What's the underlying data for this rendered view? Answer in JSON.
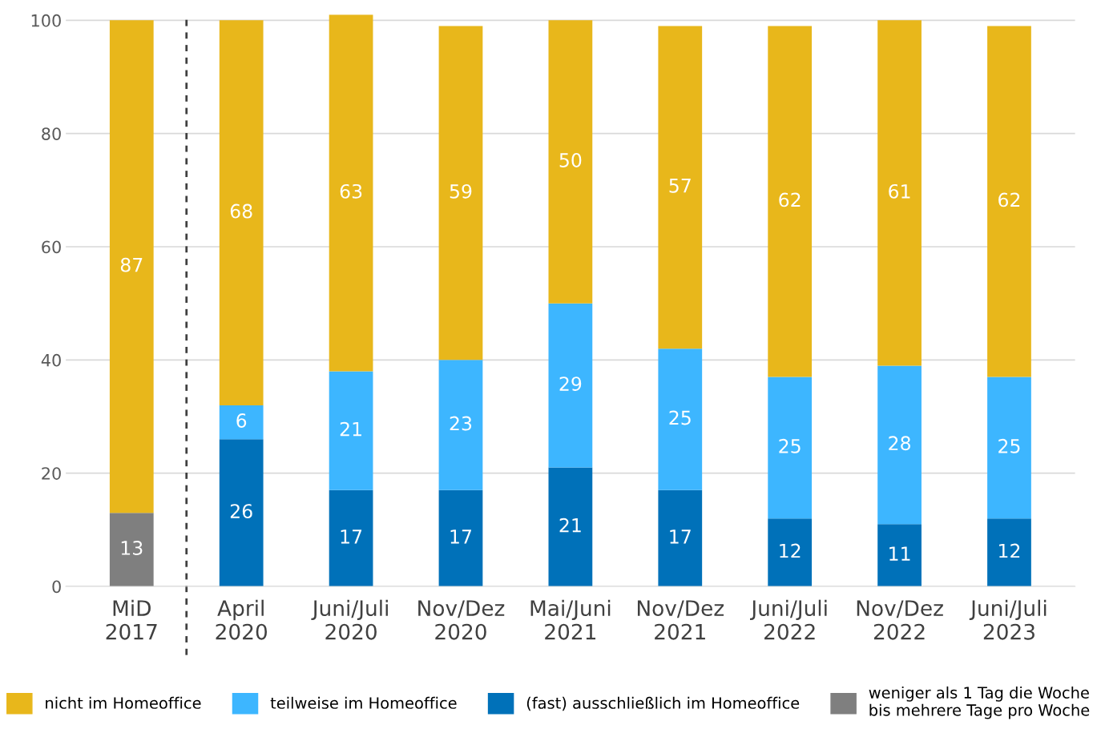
{
  "chart_data": {
    "type": "bar",
    "stacked": true,
    "categories": [
      "MiD\n2017",
      "April\n2020",
      "Juni/Juli\n2020",
      "Nov/Dez\n2020",
      "Mai/Juni\n2021",
      "Nov/Dez\n2021",
      "Juni/Juli\n2022",
      "Nov/Dez\n2022",
      "Juni/Juli\n2023"
    ],
    "series": [
      {
        "name": "weniger als 1 Tag die Woche\nbis mehrere Tage pro Woche",
        "color": "#7f7f7f",
        "values": [
          13,
          null,
          null,
          null,
          null,
          null,
          null,
          null,
          null
        ]
      },
      {
        "name": "(fast) ausschließlich im Homeoffice",
        "color": "#0071b9",
        "values": [
          null,
          26,
          17,
          17,
          21,
          17,
          12,
          11,
          12
        ]
      },
      {
        "name": "teilweise im Homeoffice",
        "color": "#3db6ff",
        "values": [
          null,
          6,
          21,
          23,
          29,
          25,
          25,
          28,
          25
        ]
      },
      {
        "name": "nicht im Homeoffice",
        "color": "#e8b71b",
        "values": [
          87,
          68,
          63,
          59,
          50,
          57,
          62,
          61,
          62
        ]
      }
    ],
    "ylim": [
      0,
      101
    ],
    "yticks": [
      0,
      20,
      40,
      60,
      80,
      100
    ],
    "grid": "y",
    "legend": "bottom",
    "data_labels": true
  }
}
